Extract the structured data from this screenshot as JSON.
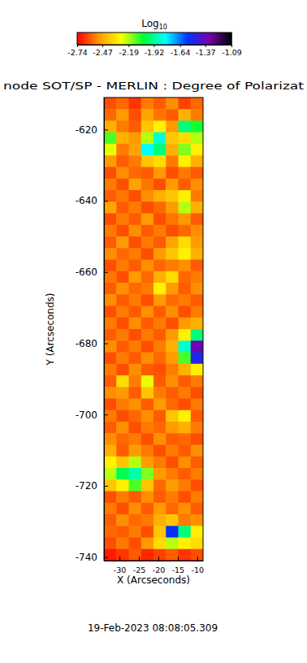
{
  "chart_data": {
    "type": "heatmap",
    "title": "node SOT/SP - MERLIN : Degree of Polarizat",
    "x_label": "X (Arcseconds)",
    "y_label": "Y (Arcseconds)",
    "footer": "19-Feb-2023 08:08:05.309",
    "xlim": [
      -34,
      -8.5
    ],
    "ylim": [
      -741,
      -611
    ],
    "xticks": [
      -30,
      -25,
      -20,
      -15,
      -10
    ],
    "yticks": [
      -620,
      -640,
      -660,
      -680,
      -700,
      -720,
      -740
    ],
    "x": [
      -32.41,
      -29.22,
      -26.03,
      -22.84,
      -19.66,
      -16.47,
      -13.28,
      -10.09
    ],
    "y": [
      -612.625,
      -615.875,
      -619.125,
      -622.375,
      -625.625,
      -628.875,
      -632.125,
      -635.375,
      -638.625,
      -641.875,
      -645.125,
      -648.375,
      -651.625,
      -654.875,
      -658.125,
      -661.375,
      -664.625,
      -667.875,
      -671.125,
      -674.375,
      -677.625,
      -680.875,
      -684.125,
      -687.375,
      -690.625,
      -693.875,
      -697.125,
      -700.375,
      -703.625,
      -706.875,
      -710.125,
      -713.375,
      -716.625,
      -719.875,
      -723.125,
      -726.375,
      -729.625,
      -732.875,
      -736.125,
      -739.375
    ],
    "z": [
      [
        -2.62,
        -2.58,
        -2.66,
        -2.55,
        -2.6,
        -2.52,
        -2.64,
        -2.58
      ],
      [
        -2.58,
        -2.5,
        -2.62,
        -2.48,
        -2.56,
        -2.6,
        -2.45,
        -2.55
      ],
      [
        -2.45,
        -2.55,
        -2.6,
        -2.4,
        -2.3,
        -2.5,
        -1.95,
        -2.05
      ],
      [
        -2.1,
        -2.45,
        -2.5,
        -2.2,
        -1.85,
        -2.4,
        -2.35,
        -2.2
      ],
      [
        -2.25,
        -2.55,
        -2.48,
        -1.8,
        -1.95,
        -2.45,
        -2.15,
        -2.3
      ],
      [
        -2.5,
        -2.6,
        -2.55,
        -2.4,
        -2.35,
        -2.55,
        -2.3,
        -2.45
      ],
      [
        -2.62,
        -2.52,
        -2.58,
        -2.6,
        -2.5,
        -2.62,
        -2.55,
        -2.6
      ],
      [
        -2.55,
        -2.62,
        -2.48,
        -2.56,
        -2.62,
        -2.5,
        -2.6,
        -2.52
      ],
      [
        -2.6,
        -2.56,
        -2.62,
        -2.52,
        -2.45,
        -2.4,
        -2.3,
        -2.55
      ],
      [
        -2.48,
        -2.6,
        -2.55,
        -2.62,
        -2.58,
        -2.5,
        -2.2,
        -2.45
      ],
      [
        -2.62,
        -2.55,
        -2.6,
        -2.5,
        -2.62,
        -2.56,
        -2.5,
        -2.6
      ],
      [
        -2.55,
        -2.62,
        -2.52,
        -2.6,
        -2.55,
        -2.62,
        -2.58,
        -2.52
      ],
      [
        -2.6,
        -2.5,
        -2.62,
        -2.55,
        -2.6,
        -2.48,
        -2.35,
        -2.5
      ],
      [
        -2.52,
        -2.58,
        -2.55,
        -2.62,
        -2.5,
        -2.4,
        -2.3,
        -2.45
      ],
      [
        -2.62,
        -2.55,
        -2.6,
        -2.52,
        -2.58,
        -2.55,
        -2.52,
        -2.6
      ],
      [
        -2.56,
        -2.62,
        -2.5,
        -2.58,
        -2.45,
        -2.35,
        -2.58,
        -2.55
      ],
      [
        -2.6,
        -2.52,
        -2.58,
        -2.55,
        -2.3,
        -2.5,
        -2.6,
        -2.52
      ],
      [
        -2.52,
        -2.6,
        -2.55,
        -2.62,
        -2.5,
        -2.58,
        -2.55,
        -2.6
      ],
      [
        -2.62,
        -2.55,
        -2.6,
        -2.52,
        -2.6,
        -2.52,
        -2.62,
        -2.55
      ],
      [
        -2.55,
        -2.62,
        -2.52,
        -2.6,
        -2.55,
        -2.62,
        -2.5,
        -2.45
      ],
      [
        -2.6,
        -2.55,
        -2.62,
        -2.55,
        -2.6,
        -2.5,
        -2.3,
        -1.95
      ],
      [
        -2.52,
        -2.6,
        -2.55,
        -2.62,
        -2.55,
        -2.45,
        -1.85,
        -1.35
      ],
      [
        -2.62,
        -2.55,
        -2.6,
        -2.52,
        -2.58,
        -2.5,
        -2.1,
        -1.5
      ],
      [
        -2.55,
        -2.62,
        -2.52,
        -2.6,
        -2.62,
        -2.55,
        -2.45,
        -2.3
      ],
      [
        -2.6,
        -2.35,
        -2.55,
        -2.25,
        -2.6,
        -2.52,
        -2.6,
        -2.55
      ],
      [
        -2.52,
        -2.5,
        -2.6,
        -2.4,
        -2.55,
        -2.6,
        -2.55,
        -2.62
      ],
      [
        -2.62,
        -2.55,
        -2.52,
        -2.6,
        -2.5,
        -2.58,
        -2.62,
        -2.55
      ],
      [
        -2.55,
        -2.62,
        -2.58,
        -2.52,
        -2.6,
        -2.4,
        -2.3,
        -2.6
      ],
      [
        -2.6,
        -2.52,
        -2.62,
        -2.55,
        -2.58,
        -2.5,
        -2.45,
        -2.55
      ],
      [
        -2.52,
        -2.58,
        -2.55,
        -2.62,
        -2.52,
        -2.6,
        -2.58,
        -2.62
      ],
      [
        -2.45,
        -2.6,
        -2.5,
        -2.55,
        -2.62,
        -2.55,
        -2.6,
        -2.52
      ],
      [
        -2.3,
        -2.4,
        -2.2,
        -2.5,
        -2.55,
        -2.62,
        -2.52,
        -2.6
      ],
      [
        -2.2,
        -2.0,
        -1.9,
        -2.15,
        -2.5,
        -2.55,
        -2.6,
        -2.55
      ],
      [
        -2.4,
        -2.3,
        -2.1,
        -2.4,
        -2.58,
        -2.5,
        -2.55,
        -2.62
      ],
      [
        -2.62,
        -2.55,
        -2.6,
        -2.52,
        -2.6,
        -2.55,
        -2.62,
        -2.55
      ],
      [
        -2.55,
        -2.62,
        -2.52,
        -2.6,
        -2.5,
        -2.58,
        -2.52,
        -2.6
      ],
      [
        -2.6,
        -2.52,
        -2.58,
        -2.55,
        -2.45,
        -2.4,
        -2.55,
        -2.52
      ],
      [
        -2.58,
        -2.6,
        -2.55,
        -2.62,
        -2.4,
        -1.55,
        -1.95,
        -2.3
      ],
      [
        -2.62,
        -2.55,
        -2.62,
        -2.5,
        -2.35,
        -2.2,
        -2.3,
        -2.35
      ],
      [
        -2.7,
        -2.66,
        -2.6,
        -2.68,
        -2.64,
        -2.6,
        -2.66,
        -2.62
      ]
    ],
    "colorbar_label": "Log",
    "colorbar_label_subscript": "10",
    "colorbar_range": [
      -2.74,
      -1.09
    ],
    "colorbar_ticks": [
      -2.74,
      -2.47,
      -2.19,
      -1.92,
      -1.64,
      -1.37,
      -1.09
    ]
  }
}
